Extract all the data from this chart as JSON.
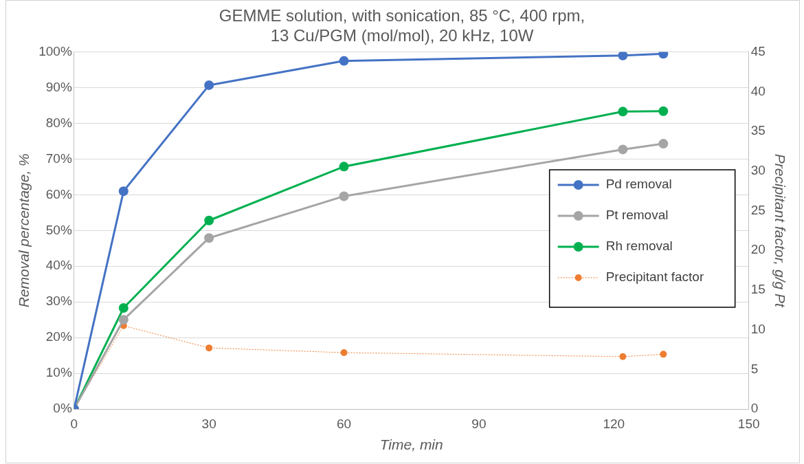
{
  "chart_data": {
    "type": "line",
    "title": "GEMME solution, with sonication, 85 °C, 400 rpm,\n13 Cu/PGM (mol/mol), 20 kHz, 10W",
    "xlabel": "Time, min",
    "ylabel": "Removal percentage, %",
    "y2label": "Precipitant factor, g/g Pt",
    "x": [
      0,
      11,
      30,
      60,
      122,
      131
    ],
    "series": [
      {
        "name": "Pd removal",
        "color": "#4472c4",
        "values": [
          0,
          61,
          90.7,
          97.5,
          99,
          99.5
        ]
      },
      {
        "name": "Pt removal",
        "color": "#a5a5a5",
        "values": [
          0,
          25,
          47.9,
          59.6,
          72.7,
          74.3
        ]
      },
      {
        "name": "Rh removal",
        "color": "#00b050",
        "values": [
          0,
          28.3,
          52.8,
          67.9,
          83.3,
          83.4
        ]
      },
      {
        "name": "Precipitant factor",
        "color": "#ed7d31",
        "axis": "y2",
        "line_style": "dotted",
        "values": [
          0,
          10.5,
          7.7,
          7.1,
          6.6,
          6.9
        ]
      }
    ],
    "xlim": [
      0,
      150
    ],
    "xticks": [
      0,
      30,
      60,
      90,
      120,
      150
    ],
    "ylim": [
      0,
      100
    ],
    "yticks": [
      {
        "value": 0,
        "label": "0%"
      },
      {
        "value": 10,
        "label": "10%"
      },
      {
        "value": 20,
        "label": "20%"
      },
      {
        "value": 30,
        "label": "30%"
      },
      {
        "value": 40,
        "label": "40%"
      },
      {
        "value": 50,
        "label": "50%"
      },
      {
        "value": 60,
        "label": "60%"
      },
      {
        "value": 70,
        "label": "70%"
      },
      {
        "value": 80,
        "label": "80%"
      },
      {
        "value": 90,
        "label": "90%"
      },
      {
        "value": 100,
        "label": "100%"
      }
    ],
    "y2lim": [
      0,
      45
    ],
    "y2ticks": [
      0,
      5,
      10,
      15,
      20,
      25,
      30,
      35,
      40,
      45
    ],
    "grid": "y",
    "legend": "right",
    "marker": "circle",
    "line_style": "solid"
  }
}
